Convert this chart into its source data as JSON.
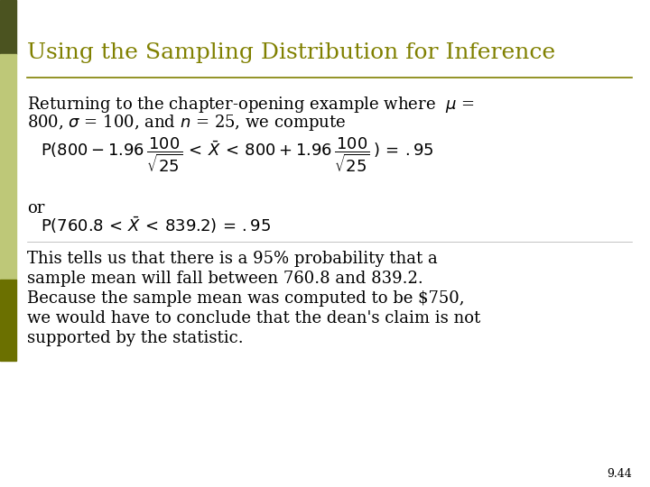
{
  "title": "Using the Sampling Distribution for Inference",
  "title_color": "#808000",
  "title_fontsize": 18,
  "bg_color": "#ffffff",
  "left_bar_color_top": "#4B5320",
  "left_bar_color_mid_light": "#BEC878",
  "left_bar_color_mid_dark": "#6B6B00",
  "left_bar_color_bottom": "#6B6B00",
  "line_color": "#808000",
  "text_color": "#000000",
  "slide_number": "9.44",
  "body_fontsize": 13,
  "math_fontsize": 13,
  "or_text": "or"
}
